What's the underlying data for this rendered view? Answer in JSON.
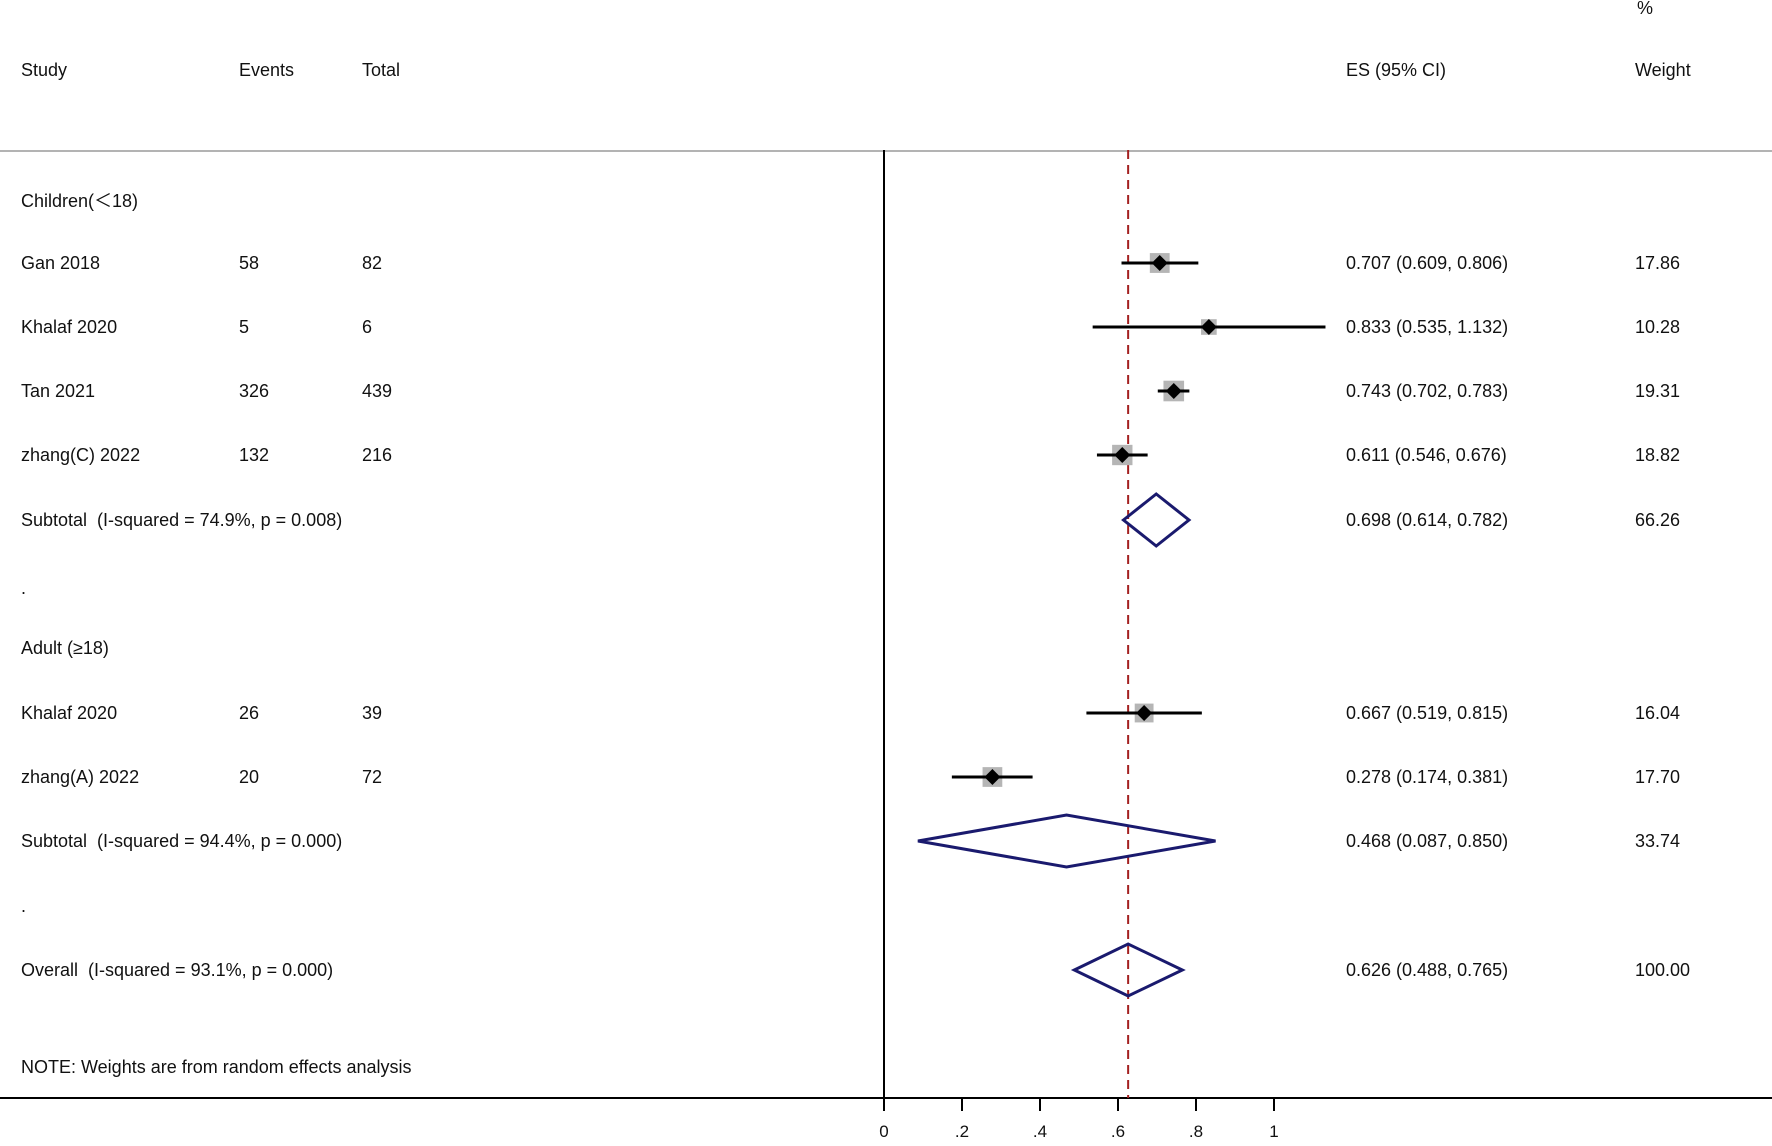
{
  "header": {
    "study": "Study",
    "events": "Events",
    "total": "Total",
    "es": "ES (95% CI)",
    "pct": "%",
    "weight": "Weight"
  },
  "note": "NOTE: Weights are from random effects analysis",
  "chart_data": {
    "type": "forest",
    "xlim": [
      0,
      1
    ],
    "ticks": [
      {
        "value": 0,
        "label": "0"
      },
      {
        "value": 0.2,
        "label": ".2"
      },
      {
        "value": 0.4,
        "label": ".4"
      },
      {
        "value": 0.6,
        "label": ".6"
      },
      {
        "value": 0.8,
        "label": ".8"
      },
      {
        "value": 1,
        "label": "1"
      }
    ],
    "overall_line": 0.626,
    "rows": [
      {
        "kind": "group",
        "label": "Children(＜18)"
      },
      {
        "kind": "study",
        "label": "Gan 2018",
        "events": "58",
        "total": "82",
        "es": 0.707,
        "lo": 0.609,
        "hi": 0.806,
        "es_text": "0.707 (0.609, 0.806)",
        "weight": "17.86"
      },
      {
        "kind": "study",
        "label": "Khalaf 2020",
        "events": "5",
        "total": "6",
        "es": 0.833,
        "lo": 0.535,
        "hi": 1.132,
        "es_text": "0.833 (0.535, 1.132)",
        "weight": "10.28"
      },
      {
        "kind": "study",
        "label": "Tan 2021",
        "events": "326",
        "total": "439",
        "es": 0.743,
        "lo": 0.702,
        "hi": 0.783,
        "es_text": "0.743 (0.702, 0.783)",
        "weight": "19.31"
      },
      {
        "kind": "study",
        "label": "zhang(C) 2022",
        "events": "132",
        "total": "216",
        "es": 0.611,
        "lo": 0.546,
        "hi": 0.676,
        "es_text": "0.611 (0.546, 0.676)",
        "weight": "18.82"
      },
      {
        "kind": "subtotal",
        "label": "Subtotal  (I-squared = 74.9%, p = 0.008)",
        "es": 0.698,
        "lo": 0.614,
        "hi": 0.782,
        "es_text": "0.698 (0.614, 0.782)",
        "weight": "66.26"
      },
      {
        "kind": "spacer",
        "label": "."
      },
      {
        "kind": "group",
        "label": "Adult (≥18)"
      },
      {
        "kind": "study",
        "label": "Khalaf 2020",
        "events": "26",
        "total": "39",
        "es": 0.667,
        "lo": 0.519,
        "hi": 0.815,
        "es_text": "0.667 (0.519, 0.815)",
        "weight": "16.04"
      },
      {
        "kind": "study",
        "label": "zhang(A) 2022",
        "events": "20",
        "total": "72",
        "es": 0.278,
        "lo": 0.174,
        "hi": 0.381,
        "es_text": "0.278 (0.174, 0.381)",
        "weight": "17.70"
      },
      {
        "kind": "subtotal",
        "label": "Subtotal  (I-squared = 94.4%, p = 0.000)",
        "es": 0.468,
        "lo": 0.087,
        "hi": 0.85,
        "es_text": "0.468 (0.087, 0.850)",
        "weight": "33.74"
      },
      {
        "kind": "spacer",
        "label": "."
      },
      {
        "kind": "overall",
        "label": "Overall  (I-squared = 93.1%, p = 0.000)",
        "es": 0.626,
        "lo": 0.488,
        "hi": 0.765,
        "es_text": "0.626 (0.488, 0.765)",
        "weight": "100.00"
      }
    ]
  }
}
